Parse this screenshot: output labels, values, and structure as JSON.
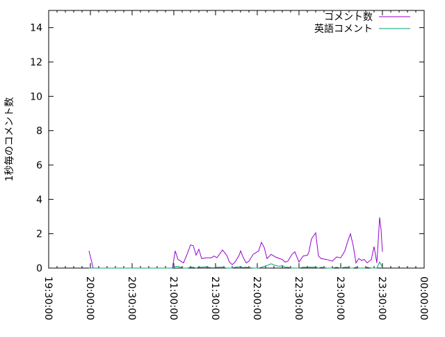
{
  "chart_data": {
    "type": "line",
    "title": "",
    "xlabel": "",
    "ylabel": "1秒毎のコメント数",
    "ylim": [
      0,
      15
    ],
    "xlim": [
      "19:30:00",
      "00:00:00"
    ],
    "yticks": [
      "0",
      "2",
      "4",
      "6",
      "8",
      "10",
      "12",
      "14"
    ],
    "xticks": [
      "19:30:00",
      "20:00:00",
      "20:30:00",
      "21:00:00",
      "21:30:00",
      "22:00:00",
      "22:30:00",
      "23:00:00",
      "23:30:00",
      "00:00:00"
    ],
    "grid": false,
    "legend_position": "top-right",
    "x": [
      "19:59",
      "20:02",
      "20:59",
      "21:01",
      "21:03",
      "21:05",
      "21:07",
      "21:10",
      "21:12",
      "21:14",
      "21:16",
      "21:18",
      "21:20",
      "21:23",
      "21:27",
      "21:29",
      "21:31",
      "21:35",
      "21:38",
      "21:40",
      "21:42",
      "21:44",
      "21:47",
      "21:48",
      "21:50",
      "21:52",
      "21:54",
      "21:57",
      "22:01",
      "22:03",
      "22:05",
      "22:07",
      "22:10",
      "22:13",
      "22:16",
      "22:18",
      "22:20",
      "22:22",
      "22:25",
      "22:27",
      "22:30",
      "22:33",
      "22:36",
      "22:37",
      "22:39",
      "22:42",
      "22:44",
      "22:46",
      "22:50",
      "22:54",
      "22:57",
      "23:00",
      "23:03",
      "23:05",
      "23:07",
      "23:09",
      "23:11",
      "23:13",
      "23:15",
      "23:17",
      "23:19",
      "23:22",
      "23:24",
      "23:26",
      "23:28",
      "23:29",
      "23:30"
    ],
    "series": [
      {
        "name": "コメント数",
        "color": "#9400d3",
        "values": [
          1.0,
          0,
          0,
          1.0,
          0.5,
          0.4,
          0.3,
          0.9,
          1.35,
          1.3,
          0.75,
          1.1,
          0.55,
          0.6,
          0.6,
          0.7,
          0.6,
          1.05,
          0.75,
          0.35,
          0.2,
          0.35,
          0.75,
          1.0,
          0.6,
          0.3,
          0.4,
          0.8,
          1.0,
          1.5,
          1.2,
          0.55,
          0.8,
          0.65,
          0.55,
          0.5,
          0.35,
          0.4,
          0.8,
          0.95,
          0.35,
          0.7,
          0.75,
          0.9,
          1.7,
          2.05,
          0.7,
          0.55,
          0.5,
          0.4,
          0.65,
          0.6,
          1.0,
          1.55,
          2.0,
          1.3,
          0.3,
          0.55,
          0.45,
          0.5,
          0.3,
          0.5,
          1.25,
          0.3,
          2.95,
          2.25,
          0.95
        ]
      },
      {
        "name": "英語コメント",
        "color": "#009e73",
        "values": [
          0,
          0,
          0,
          0.1,
          0.1,
          0.05,
          0,
          0,
          0.05,
          0.05,
          0,
          0.05,
          0.05,
          0.07,
          0.02,
          0.02,
          0.05,
          0.05,
          0,
          0,
          0,
          0.05,
          0.07,
          0.07,
          0.03,
          0.05,
          0.03,
          0,
          0,
          0.05,
          0.1,
          0.15,
          0.25,
          0.15,
          0.1,
          0.15,
          0.05,
          0.05,
          0,
          0,
          0,
          0.05,
          0.05,
          0.05,
          0.05,
          0.05,
          0,
          0.05,
          0,
          0,
          0.05,
          0,
          0.05,
          0.05,
          0,
          0,
          0.05,
          0,
          0,
          0,
          0.05,
          0,
          0,
          0,
          0.35,
          0.2,
          0.05
        ]
      }
    ]
  }
}
